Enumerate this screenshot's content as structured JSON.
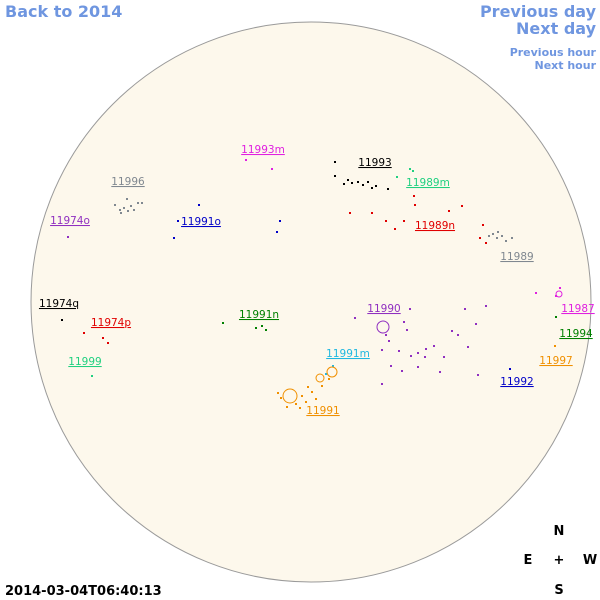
{
  "navigation": {
    "back": "Back to 2014",
    "previous_day": "Previous day",
    "next_day": "Next day",
    "previous_hour": "Previous hour",
    "next_hour": "Next hour"
  },
  "regions": [
    {
      "label": "11993m",
      "color": "#e020e0"
    },
    {
      "label": "11993",
      "color": "#000000"
    },
    {
      "label": "11996",
      "color": "#808890"
    },
    {
      "label": "11989m",
      "color": "#20d080"
    },
    {
      "label": "11974o",
      "color": "#9030c0"
    },
    {
      "label": "11991o",
      "color": "#0000c8"
    },
    {
      "label": "11989n",
      "color": "#e00000"
    },
    {
      "label": "11989",
      "color": "#808890"
    },
    {
      "label": "11974q",
      "color": "#000000"
    },
    {
      "label": "11974p",
      "color": "#e00000"
    },
    {
      "label": "11991n",
      "color": "#008000"
    },
    {
      "label": "11990",
      "color": "#9030c0"
    },
    {
      "label": "11987",
      "color": "#e020e0"
    },
    {
      "label": "11994",
      "color": "#008000"
    },
    {
      "label": "11991m",
      "color": "#20b8e0"
    },
    {
      "label": "11999",
      "color": "#20d080"
    },
    {
      "label": "11997",
      "color": "#f09000"
    },
    {
      "label": "11992",
      "color": "#0000c8"
    },
    {
      "label": "11991",
      "color": "#f09000"
    }
  ],
  "compass": {
    "north": "N",
    "east": "E",
    "center": "+",
    "west": "W",
    "south": "S"
  },
  "timestamp": "2014-03-04T06:40:13"
}
